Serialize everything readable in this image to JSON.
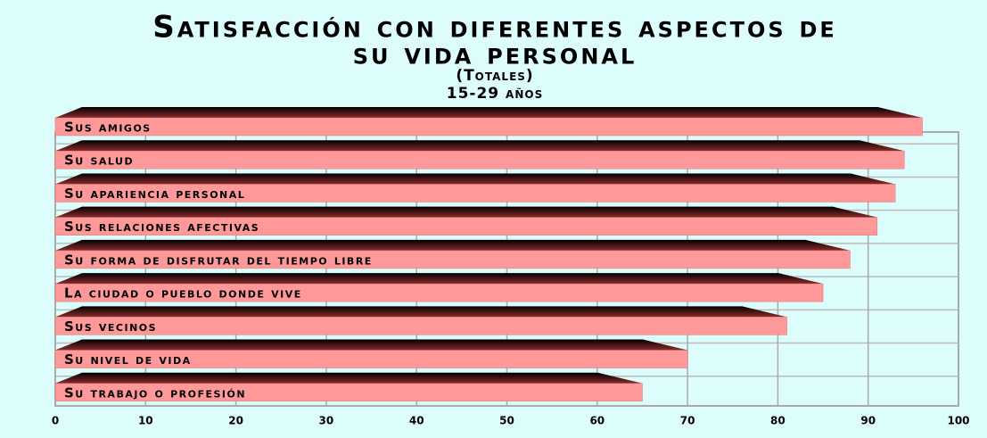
{
  "chart_data": {
    "type": "bar",
    "orientation": "horizontal",
    "title": [
      "Satisfacción con diferentes aspectos de",
      "su vida personal"
    ],
    "subtitle": [
      "(Totales)",
      "15-29 años"
    ],
    "categories": [
      "Sus amigos",
      "Su salud",
      "Su apariencia personal",
      "Sus relaciones afectivas",
      "Su forma de disfrutar del tiempo libre",
      "La ciudad o pueblo donde vive",
      "Sus vecinos",
      "Su nivel de vida",
      "Su trabajo o profesión"
    ],
    "values": [
      96,
      94,
      93,
      91,
      88,
      85,
      81,
      70,
      65
    ],
    "color": "#ff9999",
    "xlim": [
      0,
      100
    ],
    "xticks": [
      0,
      10,
      20,
      30,
      40,
      50,
      60,
      70,
      80,
      90,
      100
    ],
    "grid": true
  }
}
